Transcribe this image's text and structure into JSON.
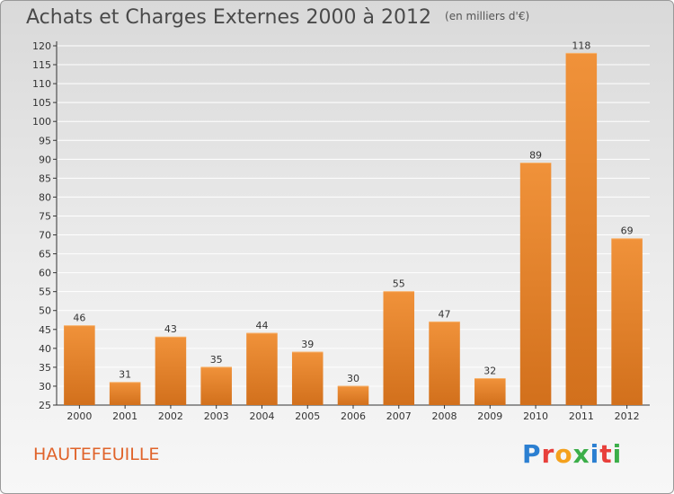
{
  "header": {
    "title": "Achats et Charges Externes 2000 à 2012",
    "unit": "(en milliers d'€)"
  },
  "footer": {
    "commune": "HAUTEFEUILLE",
    "logo": "Proxiti",
    "logo_colors": [
      "#2b7fd1",
      "#e8403b",
      "#f4a11d",
      "#3bae49",
      "#2b7fd1",
      "#e8403b",
      "#3bae49"
    ]
  },
  "colors": {
    "bar": "#f0923a",
    "bar_dark": "#d2701c",
    "axis": "#333333",
    "grid": "#ffffff"
  },
  "chart_data": {
    "type": "bar",
    "categories": [
      "2000",
      "2001",
      "2002",
      "2003",
      "2004",
      "2005",
      "2006",
      "2007",
      "2008",
      "2009",
      "2010",
      "2011",
      "2012"
    ],
    "values": [
      46,
      31,
      43,
      35,
      44,
      39,
      30,
      55,
      47,
      32,
      89,
      118,
      69
    ],
    "ylim": [
      25,
      120
    ],
    "yticks": [
      25,
      30,
      35,
      40,
      45,
      50,
      55,
      60,
      65,
      70,
      75,
      80,
      85,
      90,
      95,
      100,
      105,
      110,
      115,
      120
    ],
    "grid": true,
    "legend": "none"
  }
}
